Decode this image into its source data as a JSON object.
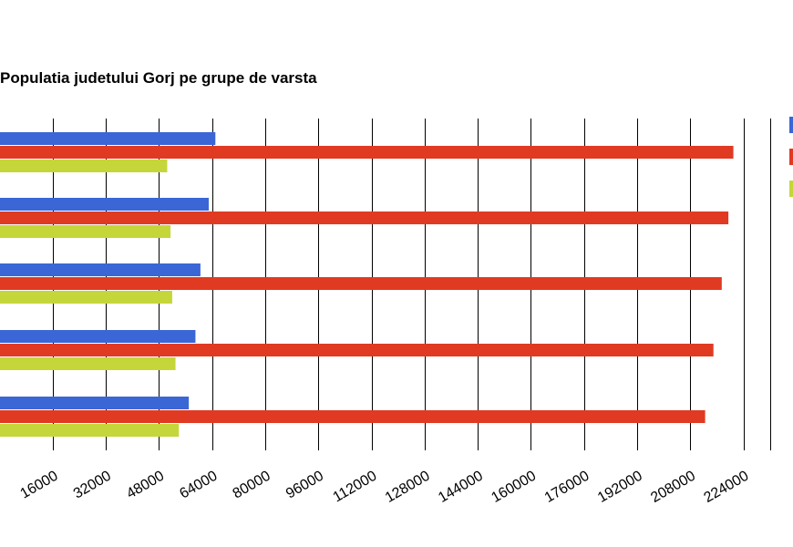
{
  "chart_data": {
    "type": "bar",
    "orientation": "horizontal",
    "title": "Populatia judetului Gorj pe grupe de varsta",
    "xlabel": "",
    "ylabel": "",
    "xlim": [
      0,
      240000
    ],
    "x_ticks": [
      16000,
      32000,
      48000,
      64000,
      80000,
      96000,
      112000,
      128000,
      144000,
      160000,
      176000,
      192000,
      208000,
      224000
    ],
    "grid": true,
    "legend_position": "right",
    "categories": [
      "",
      "",
      "",
      "",
      ""
    ],
    "series": [
      {
        "color": "#3a66d6",
        "values": [
          65000,
          63000,
          60500,
          59000,
          57000
        ]
      },
      {
        "color": "#e03a22",
        "values": [
          221000,
          219500,
          217500,
          215000,
          212500
        ]
      },
      {
        "color": "#c5d63a",
        "values": [
          50500,
          51500,
          52000,
          53000,
          54000
        ]
      }
    ]
  }
}
